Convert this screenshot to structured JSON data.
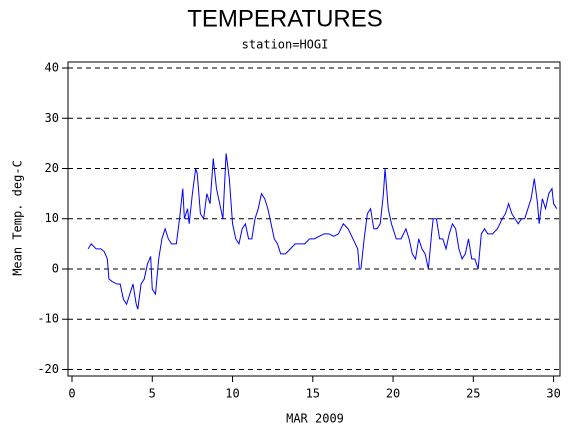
{
  "chart_data": {
    "type": "line",
    "title": "TEMPERATURES",
    "subtitle": "station=HOGI",
    "x_label": "MAR 2009",
    "y_label": "Mean Temp. deg-C",
    "x": [
      1.0,
      1.2,
      1.5,
      1.8,
      2.0,
      2.2,
      2.3,
      2.5,
      2.8,
      3.0,
      3.2,
      3.4,
      3.6,
      3.8,
      4.0,
      4.1,
      4.3,
      4.5,
      4.7,
      4.9,
      5.0,
      5.2,
      5.4,
      5.6,
      5.8,
      6.0,
      6.2,
      6.5,
      6.7,
      6.9,
      7.0,
      7.2,
      7.3,
      7.5,
      7.7,
      7.8,
      8.0,
      8.2,
      8.4,
      8.6,
      8.8,
      9.0,
      9.2,
      9.4,
      9.6,
      9.8,
      10.0,
      10.2,
      10.4,
      10.6,
      10.8,
      11.0,
      11.2,
      11.4,
      11.6,
      11.8,
      12.0,
      12.2,
      12.4,
      12.6,
      12.8,
      13.0,
      13.3,
      13.6,
      13.9,
      14.2,
      14.5,
      14.8,
      15.1,
      15.4,
      15.7,
      16.0,
      16.3,
      16.6,
      16.9,
      17.2,
      17.5,
      17.8,
      17.9,
      18.0,
      18.2,
      18.4,
      18.6,
      18.8,
      19.0,
      19.2,
      19.4,
      19.5,
      19.7,
      19.9,
      20.2,
      20.5,
      20.8,
      21.0,
      21.2,
      21.4,
      21.6,
      21.8,
      22.0,
      22.2,
      22.4,
      22.5,
      22.7,
      22.9,
      23.1,
      23.3,
      23.5,
      23.7,
      23.9,
      24.1,
      24.3,
      24.5,
      24.7,
      24.9,
      25.1,
      25.3,
      25.5,
      25.7,
      25.9,
      26.2,
      26.5,
      26.8,
      27.0,
      27.2,
      27.4,
      27.6,
      27.8,
      28.0,
      28.2,
      28.4,
      28.6,
      28.8,
      29.0,
      29.1,
      29.3,
      29.5,
      29.7,
      29.9,
      30.0,
      30.2
    ],
    "series": [
      {
        "name": "Mean Temp",
        "color": "#0000ff",
        "values": [
          4,
          5,
          4,
          4,
          3.5,
          2,
          -2,
          -2.5,
          -3,
          -3,
          -6,
          -7,
          -5,
          -3,
          -7,
          -8,
          -3,
          -2,
          1,
          2.5,
          -4,
          -5,
          2,
          6,
          8,
          6,
          5,
          5,
          10,
          16,
          10,
          12,
          9,
          15,
          20,
          19,
          11,
          10,
          15,
          13,
          22,
          16,
          13,
          10,
          23,
          18,
          9,
          6,
          5,
          8,
          9,
          6,
          6,
          10,
          12,
          15,
          14,
          12,
          9,
          6,
          5,
          3,
          3,
          4,
          5,
          5,
          5,
          6,
          6,
          6.5,
          7,
          7,
          6.5,
          7,
          9,
          8,
          6,
          4,
          0,
          0,
          6,
          11,
          12,
          8,
          8,
          9,
          15,
          20,
          12,
          9,
          6,
          6,
          8,
          6,
          3,
          2,
          6,
          4,
          3,
          0,
          7,
          10,
          10,
          6,
          6,
          4,
          7,
          9,
          8,
          4,
          2,
          3,
          6,
          2,
          2,
          0,
          7,
          8,
          7,
          7,
          8,
          10,
          11,
          13,
          11,
          10,
          9,
          10,
          10,
          12,
          14,
          18,
          13,
          9,
          14,
          12,
          15,
          16,
          13,
          12
        ]
      }
    ],
    "xlim": [
      -0.25,
      30.4
    ],
    "ylim": [
      -21.3,
      41.2
    ],
    "xticks": [
      0,
      5,
      10,
      15,
      20,
      25,
      30
    ],
    "yticks": [
      -20,
      -10,
      0,
      10,
      20,
      30,
      40
    ],
    "grid": true
  }
}
